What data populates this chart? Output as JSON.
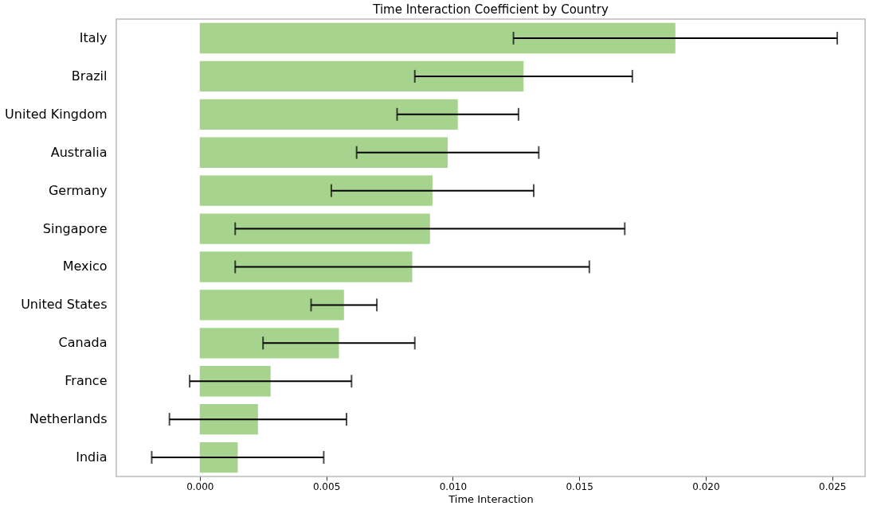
{
  "chart_data": {
    "type": "bar",
    "orientation": "horizontal",
    "title": "Time Interaction Coefficient by Country",
    "xlabel": "Time Interaction",
    "categories": [
      "Italy",
      "Brazil",
      "United Kingdom",
      "Australia",
      "Germany",
      "Singapore",
      "Mexico",
      "United States",
      "Canada",
      "France",
      "Netherlands",
      "India"
    ],
    "values": [
      0.0188,
      0.0128,
      0.0102,
      0.0098,
      0.0092,
      0.0091,
      0.0084,
      0.0057,
      0.0055,
      0.0028,
      0.0023,
      0.0015
    ],
    "errors": [
      0.0064,
      0.0043,
      0.0024,
      0.0036,
      0.004,
      0.0077,
      0.007,
      0.0013,
      0.003,
      0.0032,
      0.0035,
      0.0034
    ],
    "color": "#a6d38d",
    "xlim": [
      -0.0033,
      0.0263
    ],
    "xticks": [
      {
        "value": 0,
        "label": "0.000"
      },
      {
        "value": 0.005,
        "label": "0.005"
      },
      {
        "value": 0.01,
        "label": "0.010"
      },
      {
        "value": 0.015,
        "label": "0.015"
      },
      {
        "value": 0.02,
        "label": "0.020"
      },
      {
        "value": 0.025,
        "label": "0.025"
      }
    ],
    "grid": false
  }
}
